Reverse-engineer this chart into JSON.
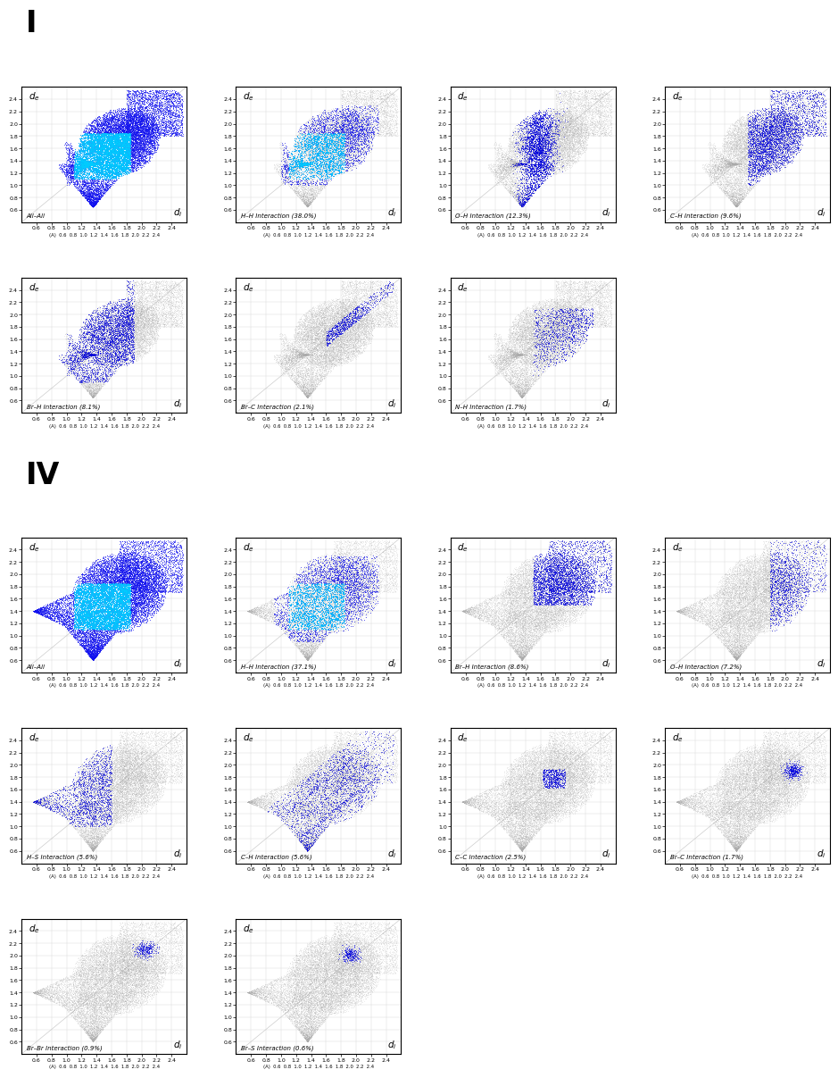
{
  "section_I_label": "I",
  "section_IV_label": "IV",
  "plots_I": [
    {
      "label": "All–All",
      "blue_region": "all_I",
      "has_cyan": true
    },
    {
      "label": "H–H Interaction (38.0%)",
      "blue_region": "hh_I",
      "has_cyan": true
    },
    {
      "label": "O–H Interaction (12.3%)",
      "blue_region": "oh_I",
      "has_cyan": false
    },
    {
      "label": "C–H Interaction (9.6%)",
      "blue_region": "ch_I",
      "has_cyan": false
    },
    {
      "label": "Br–H Interaction (8.1%)",
      "blue_region": "brh_I",
      "has_cyan": false
    },
    {
      "label": "Br–C Interaction (2.1%)",
      "blue_region": "brc_I",
      "has_cyan": false
    },
    {
      "label": "N–H Interaction (1.7%)",
      "blue_region": "nh_I",
      "has_cyan": false
    }
  ],
  "plots_IV": [
    {
      "label": "All–All",
      "blue_region": "all_IV",
      "has_cyan": true
    },
    {
      "label": "H–H Interaction (37.1%)",
      "blue_region": "hh_IV",
      "has_cyan": true
    },
    {
      "label": "Br–H Interaction (8.6%)",
      "blue_region": "brh_IV",
      "has_cyan": false
    },
    {
      "label": "O–H Interaction (7.2%)",
      "blue_region": "oh_IV",
      "has_cyan": false
    },
    {
      "label": "H–S Interaction (5.6%)",
      "blue_region": "hs_IV",
      "has_cyan": false
    },
    {
      "label": "C–H Interaction (5.6%)",
      "blue_region": "ch_IV",
      "has_cyan": false
    },
    {
      "label": "C–C Interaction (2.5%)",
      "blue_region": "cc_IV",
      "has_cyan": false
    },
    {
      "label": "Br–C Interaction (1.7%)",
      "blue_region": "brc_IV",
      "has_cyan": false
    },
    {
      "label": "Br–Br Interaction (0.9%)",
      "blue_region": "brbr_IV",
      "has_cyan": false
    },
    {
      "label": "Br–S Interaction (0.6%)",
      "blue_region": "brs_IV",
      "has_cyan": false
    }
  ],
  "tick_values": [
    0.6,
    0.8,
    1.0,
    1.2,
    1.4,
    1.6,
    1.8,
    2.0,
    2.2,
    2.4
  ],
  "xmin": 0.4,
  "xmax": 2.6,
  "ymin": 0.4,
  "ymax": 2.6
}
